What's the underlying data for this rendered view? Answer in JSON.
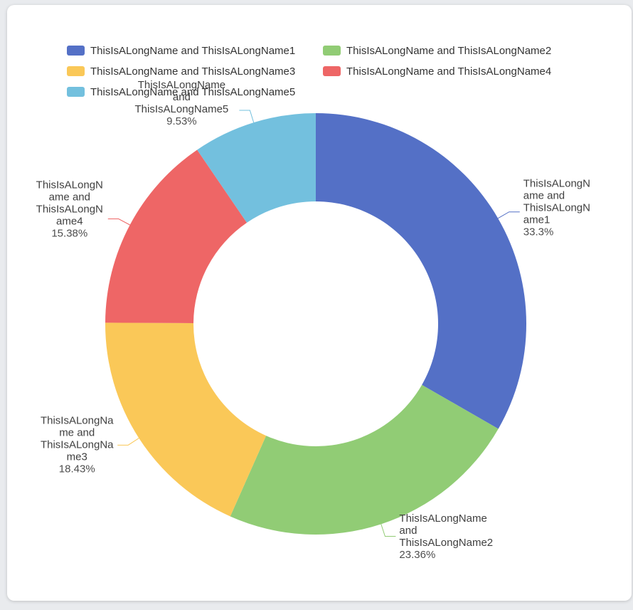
{
  "page": {
    "background_color": "#e9ebee",
    "card_color": "#ffffff"
  },
  "chart_data": {
    "type": "pie",
    "subtype": "donut",
    "title": "",
    "legend_position": "top",
    "start_angle_deg": 0,
    "clockwise": true,
    "inner_radius_ratio": 0.58,
    "label_format": "{name} {percent}",
    "slices": [
      {
        "label": "ThisIsALongName and ThisIsALongName1",
        "value": 33.3,
        "percent_label": "33.3%",
        "color": "#5470c6"
      },
      {
        "label": "ThisIsALongName and ThisIsALongName2",
        "value": 23.36,
        "percent_label": "23.36%",
        "color": "#91cc75"
      },
      {
        "label": "ThisIsALongName and ThisIsALongName3",
        "value": 18.43,
        "percent_label": "18.43%",
        "color": "#fac858"
      },
      {
        "label": "ThisIsALongName and ThisIsALongName4",
        "value": 15.38,
        "percent_label": "15.38%",
        "color": "#ee6666"
      },
      {
        "label": "ThisIsALongName and ThisIsALongName5",
        "value": 9.53,
        "percent_label": "9.53%",
        "color": "#73c0de"
      }
    ]
  }
}
